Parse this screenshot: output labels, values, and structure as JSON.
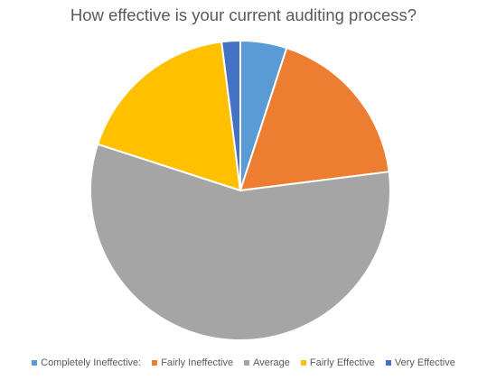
{
  "chart_data": {
    "type": "pie",
    "title": "How effective is your current auditing process?",
    "categories": [
      "Completely Ineffective:",
      "Fairly Ineffective",
      "Average",
      "Fairly Effective",
      "Very Effective"
    ],
    "values": [
      5,
      18,
      57,
      18,
      2
    ],
    "colors": [
      "#5B9BD5",
      "#ED7D31",
      "#A5A5A5",
      "#FFC000",
      "#4472C4"
    ],
    "legend_position": "bottom",
    "start_angle": "top, clockwise"
  }
}
